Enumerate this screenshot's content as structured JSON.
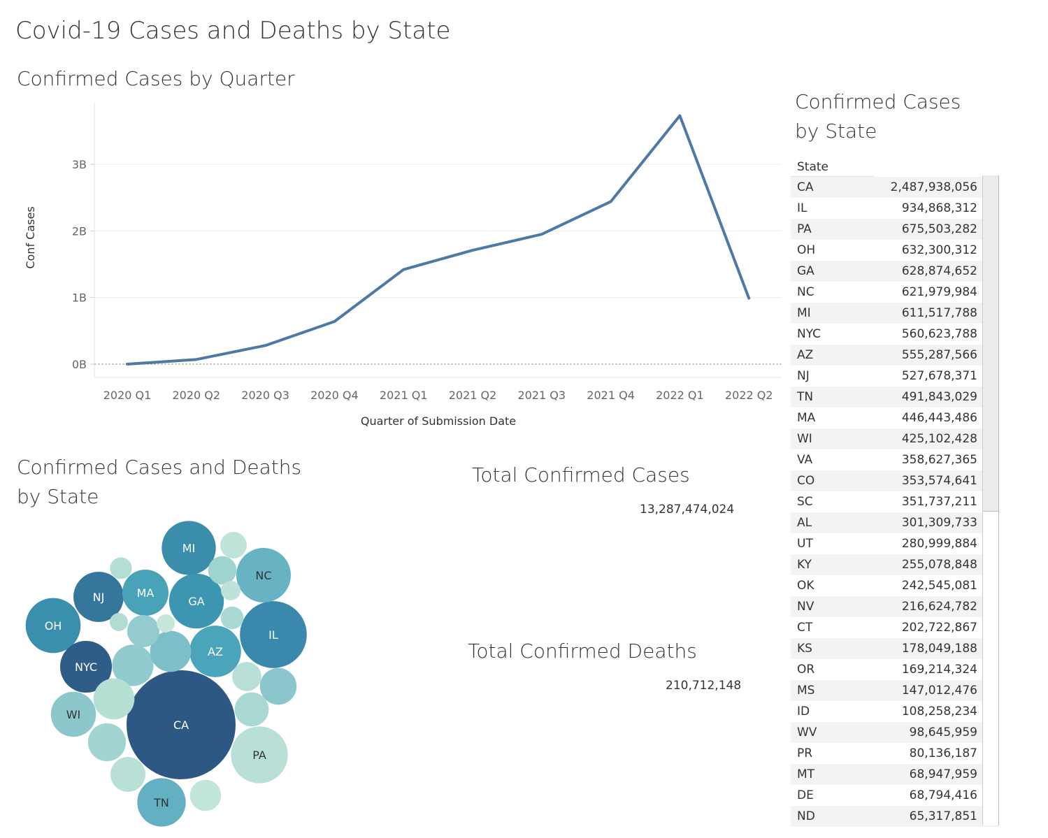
{
  "dashboard": {
    "title": "Covid-19 Cases and Deaths by State"
  },
  "line_section": {
    "title": "Confirmed Cases by Quarter"
  },
  "bubble_section": {
    "title_line1": "Confirmed Cases and Deaths",
    "title_line2": "by State"
  },
  "kpi": {
    "cases_title": "Total Confirmed Cases",
    "cases_value": "13,287,474,024",
    "deaths_title": "Total Confirmed Deaths",
    "deaths_value": "210,712,148"
  },
  "table_section": {
    "title_line1": "Confirmed Cases",
    "title_line2": "by State",
    "column_header": "State"
  },
  "colors": {
    "line": "#4e79a7",
    "grid": "#ececec",
    "zero_line": "#999999"
  },
  "chart_data": [
    {
      "type": "line",
      "title": "Confirmed Cases by Quarter",
      "xlabel": "Quarter of Submission Date",
      "ylabel": "Conf Cases",
      "categories": [
        "2020 Q1",
        "2020 Q2",
        "2020 Q3",
        "2020 Q4",
        "2021 Q1",
        "2021 Q2",
        "2021 Q3",
        "2021 Q4",
        "2022 Q1",
        "2022 Q2"
      ],
      "values": [
        0.0,
        0.07,
        0.28,
        0.64,
        1.42,
        1.71,
        1.95,
        2.44,
        3.73,
        0.99
      ],
      "value_units": "billions",
      "y_ticks": [
        0,
        1,
        2,
        3
      ],
      "y_tick_labels": [
        "0B",
        "1B",
        "2B",
        "3B"
      ],
      "ylim": [
        -0.2,
        4.0
      ],
      "grid": true
    },
    {
      "type": "bubble",
      "title": "Confirmed Cases and Deaths by State",
      "bubbles": [
        {
          "label": "CA",
          "size": 2487938056,
          "color": "#2e5884"
        },
        {
          "label": "IL",
          "size": 934868312,
          "color": "#3a89ac"
        },
        {
          "label": "PA",
          "size": 675503282,
          "color": "#b8e0d6"
        },
        {
          "label": "OH",
          "size": 632300312,
          "color": "#3a8fae"
        },
        {
          "label": "GA",
          "size": 628874652,
          "color": "#3d96b1"
        },
        {
          "label": "NC",
          "size": 621979984,
          "color": "#67b3c4"
        },
        {
          "label": "MI",
          "size": 611517788,
          "color": "#3b8eab"
        },
        {
          "label": "NYC",
          "size": 560623788,
          "color": "#2e5d88"
        },
        {
          "label": "AZ",
          "size": 555287566,
          "color": "#4ba5ba"
        },
        {
          "label": "NJ",
          "size": 527678371,
          "color": "#35769c"
        },
        {
          "label": "TN",
          "size": 491843029,
          "color": "#62b0c2"
        },
        {
          "label": "MA",
          "size": 446443486,
          "color": "#48a2b8"
        },
        {
          "label": "WI",
          "size": 425102428,
          "color": "#8cc7cc"
        },
        {
          "label": "",
          "size": 358627365,
          "color": "#91cbcf"
        },
        {
          "label": "",
          "size": 353574641,
          "color": "#7dbec8"
        },
        {
          "label": "",
          "size": 351737211,
          "color": "#b6dfd4"
        },
        {
          "label": "",
          "size": 301309733,
          "color": "#a2d5d1"
        },
        {
          "label": "",
          "size": 280999884,
          "color": "#8ac6cc"
        },
        {
          "label": "",
          "size": 255078848,
          "color": "#b8e0d6"
        },
        {
          "label": "",
          "size": 242545081,
          "color": "#a9d9d2"
        },
        {
          "label": "",
          "size": 216624782,
          "color": "#93cbcf"
        },
        {
          "label": "",
          "size": 202722867,
          "color": "#c2e5da"
        },
        {
          "label": "",
          "size": 178049188,
          "color": "#b8e0d6"
        },
        {
          "label": "",
          "size": 169214324,
          "color": "#9ed3d0"
        },
        {
          "label": "",
          "size": 147012476,
          "color": "#bfe3d9"
        },
        {
          "label": "",
          "size": 108258234,
          "color": "#a9d9d2"
        },
        {
          "label": "",
          "size": 98645959,
          "color": "#b4ded5"
        },
        {
          "label": "",
          "size": 80136187,
          "color": "#bde2d8"
        },
        {
          "label": "",
          "size": 68947959,
          "color": "#b0dcd4"
        },
        {
          "label": "",
          "size": 68794416,
          "color": "#c6e7dc"
        }
      ]
    },
    {
      "type": "table",
      "title": "Confirmed Cases by State",
      "rows": [
        {
          "state": "CA",
          "cases": "2,487,938,056"
        },
        {
          "state": "IL",
          "cases": "934,868,312"
        },
        {
          "state": "PA",
          "cases": "675,503,282"
        },
        {
          "state": "OH",
          "cases": "632,300,312"
        },
        {
          "state": "GA",
          "cases": "628,874,652"
        },
        {
          "state": "NC",
          "cases": "621,979,984"
        },
        {
          "state": "MI",
          "cases": "611,517,788"
        },
        {
          "state": "NYC",
          "cases": "560,623,788"
        },
        {
          "state": "AZ",
          "cases": "555,287,566"
        },
        {
          "state": "NJ",
          "cases": "527,678,371"
        },
        {
          "state": "TN",
          "cases": "491,843,029"
        },
        {
          "state": "MA",
          "cases": "446,443,486"
        },
        {
          "state": "WI",
          "cases": "425,102,428"
        },
        {
          "state": "VA",
          "cases": "358,627,365"
        },
        {
          "state": "CO",
          "cases": "353,574,641"
        },
        {
          "state": "SC",
          "cases": "351,737,211"
        },
        {
          "state": "AL",
          "cases": "301,309,733"
        },
        {
          "state": "UT",
          "cases": "280,999,884"
        },
        {
          "state": "KY",
          "cases": "255,078,848"
        },
        {
          "state": "OK",
          "cases": "242,545,081"
        },
        {
          "state": "NV",
          "cases": "216,624,782"
        },
        {
          "state": "CT",
          "cases": "202,722,867"
        },
        {
          "state": "KS",
          "cases": "178,049,188"
        },
        {
          "state": "OR",
          "cases": "169,214,324"
        },
        {
          "state": "MS",
          "cases": "147,012,476"
        },
        {
          "state": "ID",
          "cases": "108,258,234"
        },
        {
          "state": "WV",
          "cases": "98,645,959"
        },
        {
          "state": "PR",
          "cases": "80,136,187"
        },
        {
          "state": "MT",
          "cases": "68,947,959"
        },
        {
          "state": "DE",
          "cases": "68,794,416"
        },
        {
          "state": "ND",
          "cases": "65,317,851"
        }
      ]
    }
  ]
}
